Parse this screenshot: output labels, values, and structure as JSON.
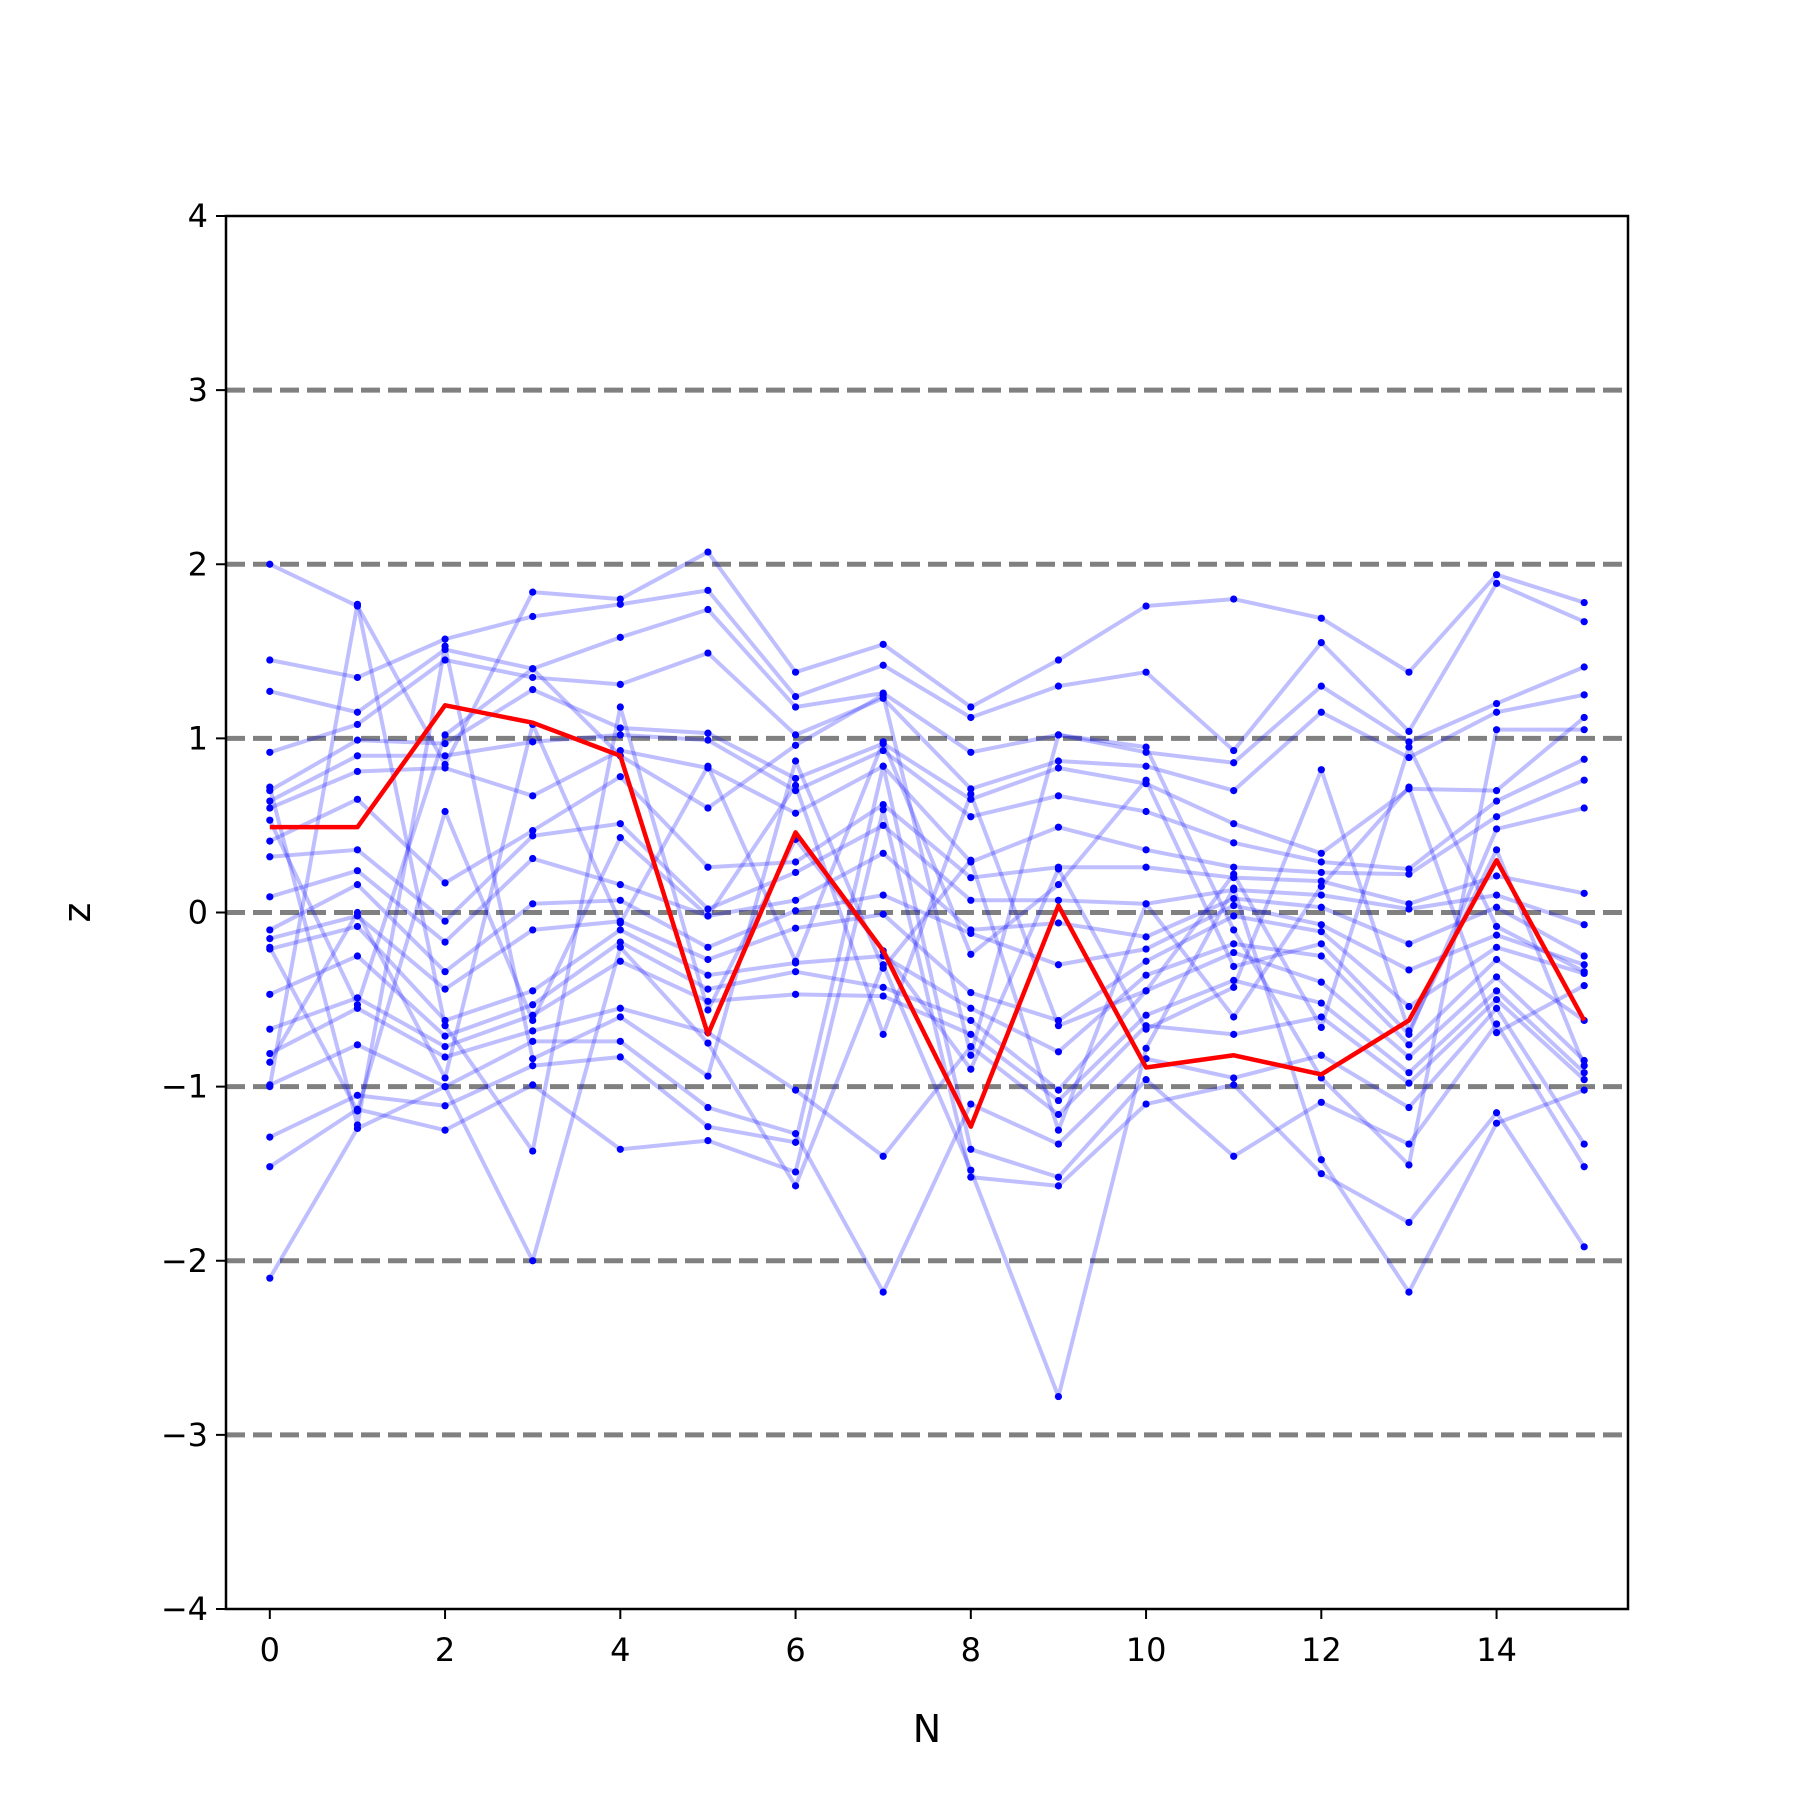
{
  "chart_data": {
    "type": "line",
    "title": "",
    "xlabel": "N",
    "ylabel": "z",
    "xlim": [
      -0.5,
      15.5
    ],
    "ylim": [
      -4,
      4
    ],
    "x_ticks": [
      0,
      2,
      4,
      6,
      8,
      10,
      12,
      14
    ],
    "y_ticks": [
      -4,
      -3,
      -2,
      -1,
      0,
      1,
      2,
      3,
      4
    ],
    "y_tick_labels": [
      "−4",
      "−3",
      "−2",
      "−1",
      "0",
      "1",
      "2",
      "3",
      "4"
    ],
    "reference_lines": {
      "y": [
        -3,
        -2,
        -1,
        0,
        1,
        2,
        3
      ],
      "style": "dashed",
      "color": "#808080"
    },
    "grid": false,
    "legend": "none",
    "x": [
      0,
      1,
      2,
      3,
      4,
      5,
      6,
      7,
      8,
      9,
      10,
      11,
      12,
      13,
      14,
      15
    ],
    "trajectories_color": "#0000ff",
    "trajectories": [
      [
        2.0,
        1.76,
        0.85,
        1.84,
        1.8,
        2.07,
        1.38,
        1.54,
        1.18,
        1.45,
        1.76,
        1.8,
        1.69,
        1.38,
        1.94,
        1.78
      ],
      [
        1.45,
        1.35,
        1.57,
        1.7,
        1.77,
        1.85,
        1.24,
        1.42,
        1.12,
        1.3,
        1.38,
        0.93,
        1.55,
        1.04,
        1.89,
        1.67
      ],
      [
        1.27,
        1.15,
        1.51,
        1.4,
        1.58,
        1.74,
        1.18,
        1.26,
        0.92,
        1.02,
        0.92,
        0.86,
        1.3,
        0.98,
        1.2,
        1.41
      ],
      [
        0.92,
        1.08,
        1.45,
        1.35,
        1.31,
        1.49,
        1.02,
        1.23,
        0.71,
        0.87,
        0.84,
        0.7,
        1.15,
        0.89,
        1.15,
        1.25
      ],
      [
        0.7,
        0.99,
        0.97,
        1.28,
        1.06,
        1.03,
        0.77,
        0.97,
        0.65,
        0.83,
        0.74,
        0.51,
        0.34,
        0.71,
        0.7,
        1.12
      ],
      [
        0.64,
        0.9,
        0.9,
        0.98,
        1.02,
        0.99,
        0.7,
        0.93,
        0.55,
        0.67,
        0.58,
        0.4,
        0.29,
        0.25,
        0.64,
        0.88
      ],
      [
        0.6,
        0.81,
        0.83,
        0.67,
        0.93,
        0.83,
        0.57,
        0.84,
        0.29,
        0.49,
        0.36,
        0.26,
        0.23,
        0.22,
        0.55,
        0.76
      ],
      [
        0.41,
        0.65,
        0.17,
        0.47,
        0.78,
        0.26,
        0.29,
        0.62,
        0.2,
        0.26,
        0.26,
        0.2,
        0.18,
        0.05,
        0.21,
        0.11
      ],
      [
        0.32,
        0.36,
        -0.05,
        0.44,
        0.51,
        0.02,
        0.23,
        0.5,
        0.07,
        0.07,
        0.05,
        0.13,
        0.1,
        0.02,
        0.1,
        -0.07
      ],
      [
        0.09,
        0.24,
        -0.17,
        0.31,
        0.16,
        -0.02,
        0.07,
        0.34,
        -0.1,
        -0.06,
        -0.14,
        0.08,
        0.03,
        -0.18,
        0.03,
        -0.25
      ],
      [
        -0.1,
        0.16,
        -0.34,
        0.05,
        0.07,
        -0.2,
        0.01,
        0.1,
        -0.12,
        -0.3,
        -0.21,
        0.04,
        -0.07,
        -0.33,
        -0.13,
        -0.3
      ],
      [
        -0.15,
        -0.02,
        -0.44,
        -0.1,
        -0.05,
        -0.27,
        -0.09,
        -0.01,
        -0.46,
        -0.62,
        -0.28,
        -0.02,
        -0.11,
        -0.54,
        -0.2,
        -0.35
      ],
      [
        -0.21,
        -0.08,
        -0.62,
        -0.45,
        -0.1,
        -0.36,
        -0.29,
        -0.25,
        -0.55,
        -0.8,
        -0.36,
        -0.18,
        -0.25,
        -0.76,
        -0.27,
        -0.62
      ],
      [
        -0.47,
        -0.25,
        -0.71,
        -0.53,
        -0.17,
        -0.44,
        -0.34,
        -0.43,
        -0.62,
        -1.02,
        -0.45,
        -0.23,
        -0.4,
        -0.83,
        -0.37,
        -0.85
      ],
      [
        -0.67,
        -0.49,
        -0.77,
        -0.59,
        -0.28,
        -0.51,
        -0.47,
        -0.48,
        -0.7,
        -1.08,
        -0.59,
        -0.39,
        -0.52,
        -0.92,
        -0.45,
        -0.92
      ],
      [
        -0.81,
        -0.55,
        -0.83,
        -0.68,
        -0.55,
        -0.69,
        -1.02,
        -1.4,
        -0.77,
        -1.16,
        -0.65,
        -0.7,
        -0.6,
        -0.98,
        -0.5,
        -0.96
      ],
      [
        -0.99,
        -0.76,
        -1.0,
        -0.74,
        -0.74,
        -1.12,
        -1.27,
        -2.18,
        -1.1,
        -1.33,
        -0.84,
        -0.95,
        -0.82,
        -1.12,
        -0.55,
        -1.33
      ],
      [
        -1.29,
        -1.05,
        -1.11,
        -0.88,
        -0.83,
        -1.23,
        -1.32,
        0.84,
        -1.36,
        -1.52,
        -0.96,
        -1.4,
        -1.09,
        -1.33,
        -0.64,
        -1.46
      ],
      [
        -1.46,
        -1.13,
        -1.25,
        -0.99,
        -1.36,
        -1.31,
        -1.49,
        0.59,
        -1.52,
        -1.57,
        -1.1,
        -0.99,
        -1.5,
        -1.78,
        -1.15,
        -1.92
      ],
      [
        -2.1,
        -1.24,
        -1.0,
        -2.0,
        -0.2,
        -0.75,
        -1.57,
        -0.3,
        -1.48,
        -2.78,
        -0.78,
        0.14,
        -1.42,
        -2.18,
        -1.21,
        -1.02
      ],
      [
        0.53,
        -0.53,
        1.02,
        1.4,
        0.9,
        0.6,
        0.96,
        1.25,
        -0.82,
        1.02,
        0.95,
        -0.1,
        -0.95,
        -1.45,
        1.05,
        1.05
      ],
      [
        -1.0,
        1.77,
        -0.65,
        -1.37,
        1.18,
        -0.56,
        0.42,
        -0.22,
        -0.9,
        0.25,
        -0.67,
        -0.43,
        0.82,
        -0.68,
        0.36,
        -0.88
      ],
      [
        0.72,
        -1.22,
        1.53,
        -0.84,
        -0.6,
        -0.94,
        0.87,
        -0.32,
        0.3,
        -1.25,
        0.05,
        -0.6,
        0.15,
        0.72,
        -0.69,
        -0.42
      ],
      [
        -0.86,
        0.0,
        -0.95,
        1.08,
        -0.06,
        0.84,
        -0.28,
        0.98,
        -0.24,
        0.16,
        0.76,
        -0.31,
        -0.18,
        -0.7,
        0.48,
        0.6
      ],
      [
        -0.2,
        -1.14,
        0.58,
        -0.62,
        0.43,
        -0.02,
        0.73,
        -0.7,
        0.68,
        -0.65,
        -0.45,
        0.22,
        -0.66,
        0.95,
        -0.08,
        -0.34
      ]
    ],
    "highlight_color": "#ff0000",
    "highlight": [
      0.49,
      0.49,
      1.19,
      1.09,
      0.9,
      -0.7,
      0.46,
      -0.22,
      -1.23,
      0.04,
      -0.89,
      -0.82,
      -0.93,
      -0.62,
      0.3,
      -0.62
    ]
  }
}
